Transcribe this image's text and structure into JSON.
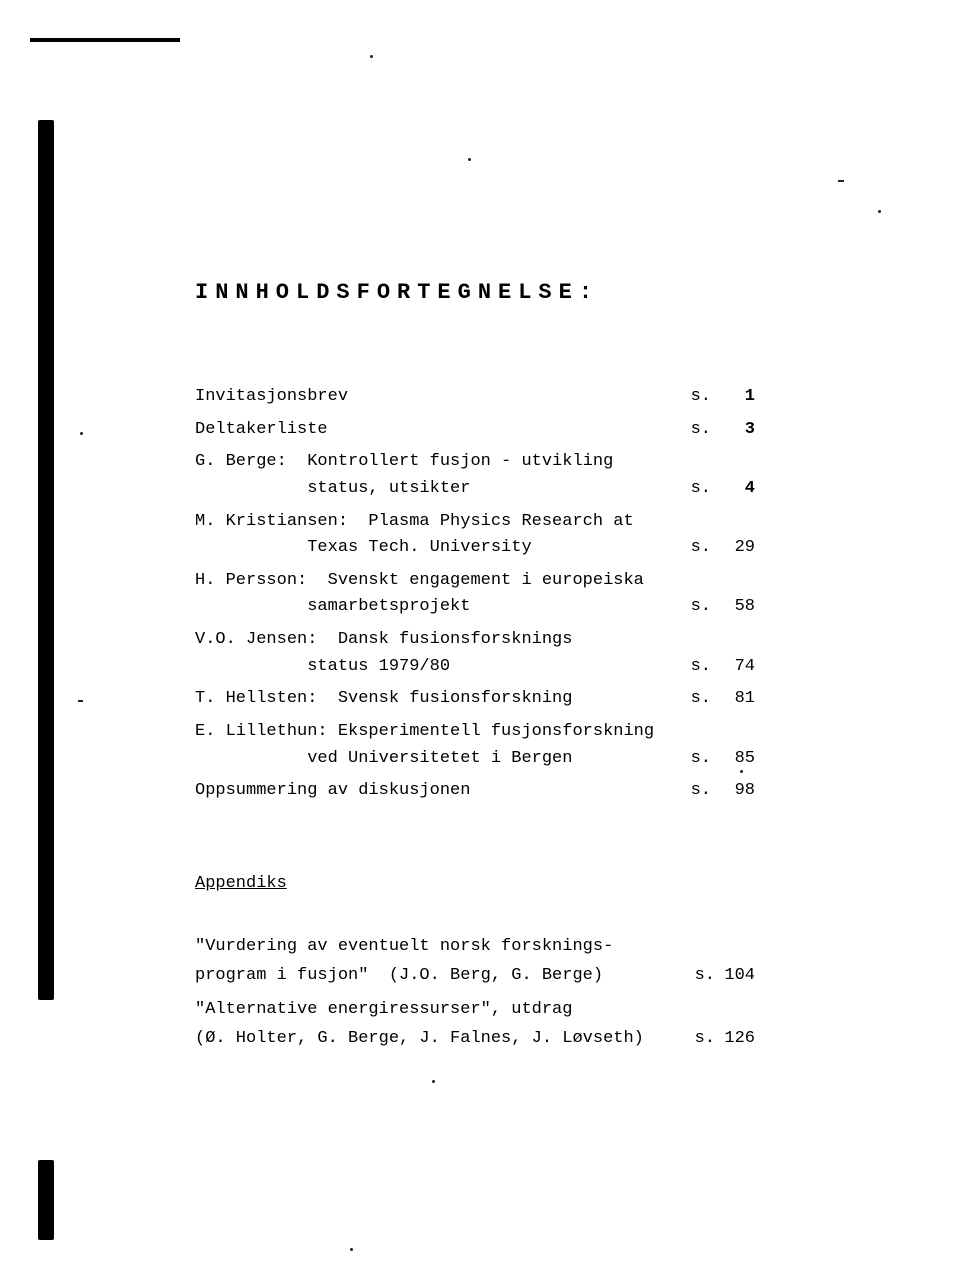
{
  "title": "INNHOLDSFORTEGNELSE:",
  "toc": [
    {
      "lines": [
        "Invitasjonsbrev"
      ],
      "page": "1",
      "bold": true
    },
    {
      "lines": [
        "Deltakerliste"
      ],
      "page": "3",
      "bold": true
    },
    {
      "lines": [
        "G. Berge:  Kontrollert fusjon - utvikling",
        "           status, utsikter"
      ],
      "page": "4",
      "bold": true
    },
    {
      "lines": [
        "M. Kristiansen:  Plasma Physics Research at",
        "           Texas Tech. University"
      ],
      "page": "29",
      "bold": false
    },
    {
      "lines": [
        "H. Persson:  Svenskt engagement i europeiska",
        "           samarbetsprojekt"
      ],
      "page": "58",
      "bold": false
    },
    {
      "lines": [
        "V.O. Jensen:  Dansk fusionsforsknings",
        "           status 1979/80"
      ],
      "page": "74",
      "bold": false
    },
    {
      "lines": [
        "T. Hellsten:  Svensk fusionsforskning"
      ],
      "page": "81",
      "bold": false
    },
    {
      "lines": [
        "E. Lillethun: Eksperimentell fusjonsforskning",
        "           ved Universitetet i Bergen"
      ],
      "page": "85",
      "bold": false
    },
    {
      "lines": [
        "Oppsummering av diskusjonen"
      ],
      "page": "98",
      "bold": false
    }
  ],
  "appendix_heading": "Appendiks",
  "appendix": [
    {
      "lines": [
        "\"Vurdering av eventuelt norsk forsknings-",
        "program i fusjon\"  (J.O. Berg, G. Berge)"
      ],
      "page": "104"
    },
    {
      "lines": [
        "\"Alternative energiressurser\", utdrag",
        "(Ø. Holter, G. Berge, J. Falnes, J. Løvseth)"
      ],
      "page": "126"
    }
  ],
  "s_label": "s."
}
